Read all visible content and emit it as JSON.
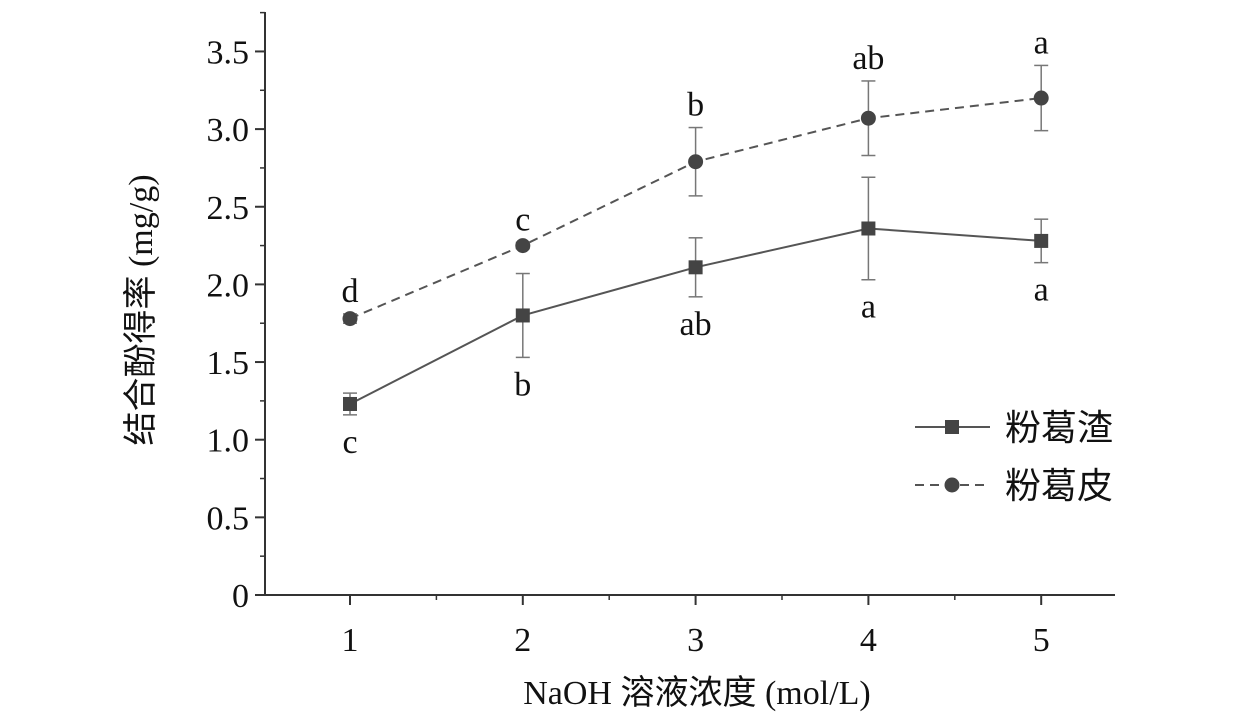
{
  "chart_data": {
    "type": "line",
    "title": "",
    "xlabel": "NaOH 溶液浓度 (mol/L)",
    "ylabel": "结合酚得率 (mg/g)",
    "x": [
      1,
      2,
      3,
      4,
      5
    ],
    "x_tick_labels": [
      "1",
      "2",
      "3",
      "4",
      "5"
    ],
    "y_tick_labels": [
      "0",
      "0.5",
      "1.0",
      "1.5",
      "2.0",
      "2.5",
      "3.0",
      "3.5"
    ],
    "xlim": [
      0.5,
      5.5
    ],
    "ylim": [
      0,
      3.75
    ],
    "grid": false,
    "legend_position": "right",
    "series": [
      {
        "name": "粉葛渣",
        "marker": "square",
        "line_style": "solid",
        "color": "#555555",
        "values": [
          1.23,
          1.8,
          2.11,
          2.36,
          2.28
        ],
        "errors": [
          0.07,
          0.27,
          0.19,
          0.33,
          0.14
        ],
        "significance": [
          "c",
          "b",
          "ab",
          "a",
          "a"
        ],
        "label_position": "below"
      },
      {
        "name": "粉葛皮",
        "marker": "circle",
        "line_style": "dashed",
        "color": "#555555",
        "values": [
          1.78,
          2.25,
          2.79,
          3.07,
          3.2
        ],
        "errors": [
          0.03,
          0.02,
          0.22,
          0.24,
          0.21
        ],
        "significance": [
          "d",
          "c",
          "b",
          "ab",
          "a"
        ],
        "label_position": "above"
      }
    ]
  }
}
